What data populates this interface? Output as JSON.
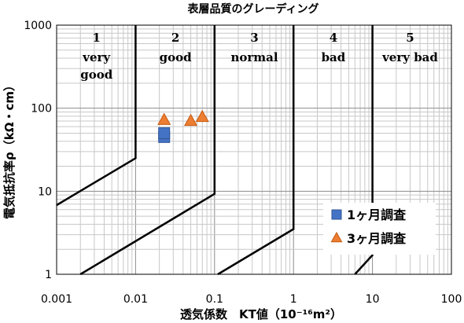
{
  "chart_data": {
    "type": "scatter",
    "title": "表層品質のグレーディング",
    "xlabel": "透気係数　KT値（10⁻¹⁶m²）",
    "ylabel": "電気抵抗率ρ（kΩ・cm）",
    "xscale": "log",
    "yscale": "log",
    "xlim": [
      0.001,
      100
    ],
    "ylim": [
      1,
      1000
    ],
    "x_ticks": [
      "0.001",
      "0.01",
      "0.1",
      "1",
      "10",
      "100"
    ],
    "y_ticks": [
      "1",
      "10",
      "100",
      "1000"
    ],
    "grid": true,
    "legend_position": "bottom-right",
    "regions": [
      {
        "num": "1",
        "lines": [
          "very",
          "good"
        ]
      },
      {
        "num": "2",
        "lines": [
          "good"
        ]
      },
      {
        "num": "3",
        "lines": [
          "normal"
        ]
      },
      {
        "num": "4",
        "lines": [
          "bad"
        ]
      },
      {
        "num": "5",
        "lines": [
          "very bad"
        ]
      }
    ],
    "boundaries": [
      [
        [
          0.001,
          6.8
        ],
        [
          0.01,
          25
        ],
        [
          0.01,
          1000
        ]
      ],
      [
        [
          0.002,
          1
        ],
        [
          0.1,
          9.3
        ],
        [
          0.1,
          1000
        ]
      ],
      [
        [
          0.11,
          1
        ],
        [
          1,
          3.5
        ],
        [
          1,
          1000
        ]
      ],
      [
        [
          6,
          1
        ],
        [
          10,
          1.7
        ],
        [
          10,
          1000
        ]
      ]
    ],
    "series": [
      {
        "name": "1ヶ月調査",
        "marker": "square",
        "color": "#4472C4",
        "points": [
          [
            0.023,
            45
          ],
          [
            0.023,
            50
          ]
        ]
      },
      {
        "name": "3ヶ月調査",
        "marker": "triangle",
        "color": "#ED7D31",
        "points": [
          [
            0.023,
            72
          ],
          [
            0.05,
            70
          ],
          [
            0.07,
            78
          ]
        ]
      }
    ]
  }
}
